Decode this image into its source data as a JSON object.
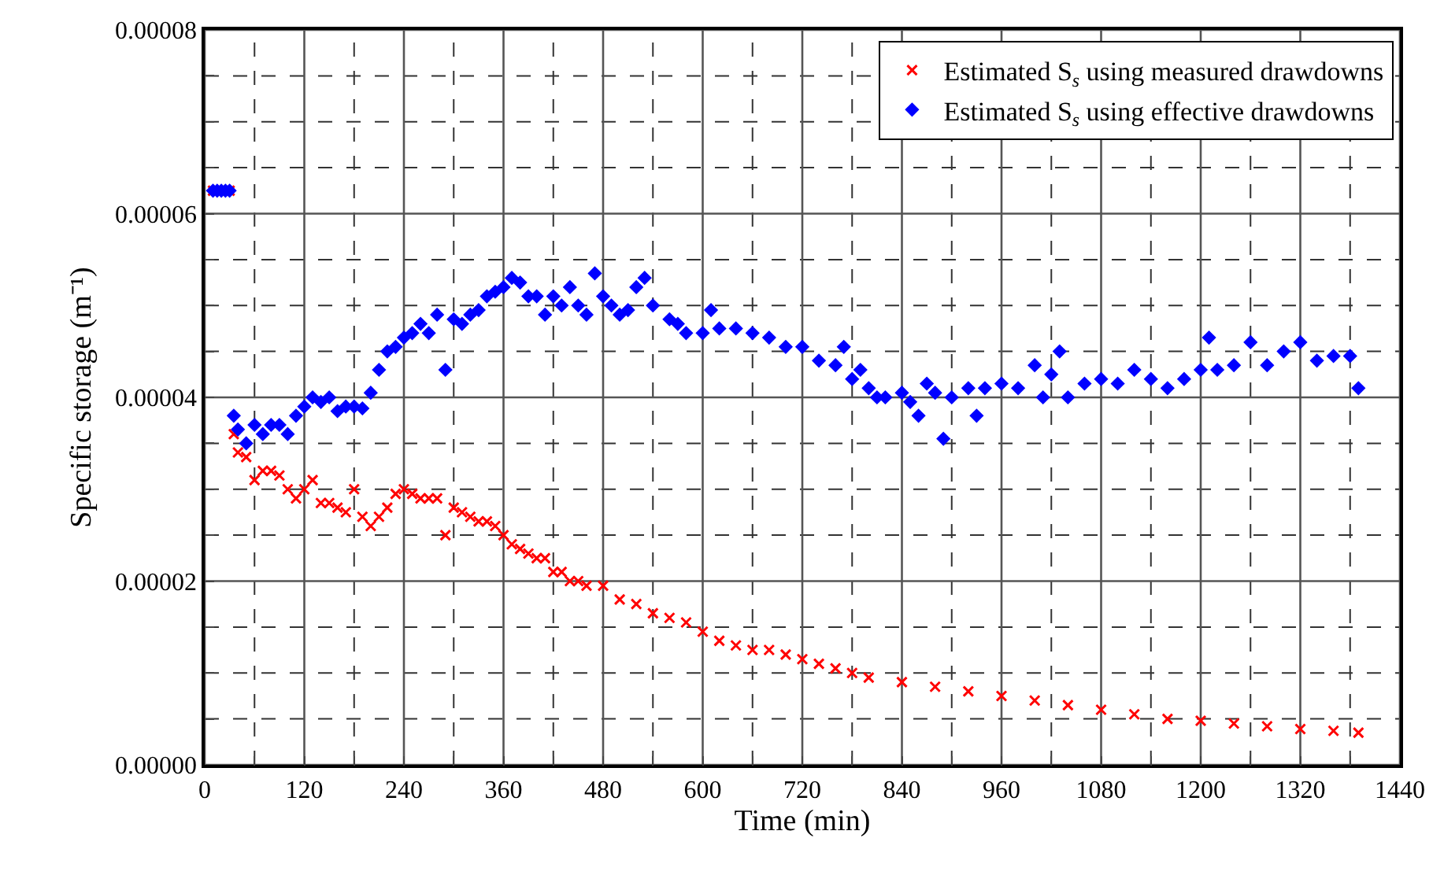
{
  "chart_data": {
    "type": "scatter",
    "xlabel": "Time (min)",
    "ylabel": "Specific storage (m⁻¹)",
    "xlim": [
      0,
      1440
    ],
    "ylim": [
      0,
      8e-05
    ],
    "xticks": [
      0,
      {
        "value": 60,
        "label": null
      },
      120,
      {
        "value": 180,
        "label": null
      },
      240,
      {
        "value": 300,
        "label": null
      },
      360,
      {
        "value": 420,
        "label": null
      },
      480,
      {
        "value": 540,
        "label": null
      },
      600,
      {
        "value": 660,
        "label": null
      },
      720,
      {
        "value": 780,
        "label": null
      },
      840,
      {
        "value": 900,
        "label": null
      },
      960,
      {
        "value": 1020,
        "label": null
      },
      1080,
      {
        "value": 1140,
        "label": null
      },
      1200,
      {
        "value": 1260,
        "label": null
      },
      1320,
      {
        "value": 1380,
        "label": null
      },
      1440
    ],
    "yticks": [
      {
        "value": 0,
        "label": "0.00000"
      },
      {
        "value": 5e-06,
        "label": null
      },
      {
        "value": 1e-05,
        "label": null
      },
      {
        "value": 1.5e-05,
        "label": null
      },
      {
        "value": 2e-05,
        "label": "0.00002"
      },
      {
        "value": 2.5e-05,
        "label": null
      },
      {
        "value": 3e-05,
        "label": null
      },
      {
        "value": 3.5e-05,
        "label": null
      },
      {
        "value": 4e-05,
        "label": "0.00004"
      },
      {
        "value": 4.5e-05,
        "label": null
      },
      {
        "value": 5e-05,
        "label": null
      },
      {
        "value": 5.5e-05,
        "label": null
      },
      {
        "value": 6e-05,
        "label": "0.00006"
      },
      {
        "value": 6.5e-05,
        "label": null
      },
      {
        "value": 7e-05,
        "label": null
      },
      {
        "value": 7.5e-05,
        "label": null
      },
      {
        "value": 8e-05,
        "label": "0.00008"
      }
    ],
    "grid": true,
    "legend": "top right",
    "series": [
      {
        "name": "Estimated S$_{s}$ using measured drawdowns",
        "color": "#ff0000",
        "marker": "cross",
        "x": [
          10,
          30,
          35,
          40,
          50,
          60,
          70,
          80,
          90,
          100,
          110,
          120,
          130,
          140,
          150,
          160,
          170,
          180,
          190,
          200,
          210,
          220,
          230,
          240,
          250,
          260,
          270,
          280,
          290,
          300,
          310,
          320,
          330,
          340,
          350,
          360,
          370,
          380,
          390,
          400,
          410,
          420,
          430,
          440,
          450,
          460,
          480,
          500,
          520,
          540,
          560,
          580,
          600,
          620,
          640,
          660,
          680,
          700,
          720,
          740,
          760,
          780,
          800,
          840,
          880,
          920,
          960,
          1000,
          1040,
          1080,
          1120,
          1160,
          1200,
          1240,
          1280,
          1320,
          1360,
          1390
        ],
        "values": [
          6.25e-05,
          6.25e-05,
          3.6e-05,
          3.4e-05,
          3.35e-05,
          3.1e-05,
          3.2e-05,
          3.2e-05,
          3.15e-05,
          3e-05,
          2.9e-05,
          3e-05,
          3.1e-05,
          2.85e-05,
          2.85e-05,
          2.8e-05,
          2.75e-05,
          3e-05,
          2.7e-05,
          2.6e-05,
          2.7e-05,
          2.8e-05,
          2.95e-05,
          3e-05,
          2.95e-05,
          2.9e-05,
          2.9e-05,
          2.9e-05,
          2.5e-05,
          2.8e-05,
          2.75e-05,
          2.7e-05,
          2.65e-05,
          2.65e-05,
          2.6e-05,
          2.5e-05,
          2.4e-05,
          2.35e-05,
          2.3e-05,
          2.25e-05,
          2.25e-05,
          2.1e-05,
          2.1e-05,
          2e-05,
          2e-05,
          1.95e-05,
          1.95e-05,
          1.8e-05,
          1.75e-05,
          1.65e-05,
          1.6e-05,
          1.55e-05,
          1.45e-05,
          1.35e-05,
          1.3e-05,
          1.25e-05,
          1.25e-05,
          1.2e-05,
          1.15e-05,
          1.1e-05,
          1.05e-05,
          1e-05,
          9.5e-06,
          9e-06,
          8.5e-06,
          8e-06,
          7.5e-06,
          7e-06,
          6.5e-06,
          6e-06,
          5.5e-06,
          5e-06,
          4.8e-06,
          4.5e-06,
          4.2e-06,
          3.9e-06,
          3.7e-06,
          3.5e-06
        ]
      },
      {
        "name": "Estimated S$_{s}$ using effective drawdowns",
        "color": "#0000ff",
        "marker": "diamond",
        "x": [
          10,
          15,
          20,
          25,
          30,
          35,
          40,
          50,
          60,
          70,
          80,
          90,
          100,
          110,
          120,
          130,
          140,
          150,
          160,
          170,
          180,
          190,
          200,
          210,
          220,
          230,
          240,
          250,
          260,
          270,
          280,
          290,
          300,
          310,
          320,
          330,
          340,
          350,
          360,
          370,
          380,
          390,
          400,
          410,
          420,
          430,
          440,
          450,
          460,
          470,
          480,
          490,
          500,
          510,
          520,
          530,
          540,
          560,
          570,
          580,
          600,
          610,
          620,
          640,
          660,
          680,
          700,
          720,
          740,
          760,
          770,
          780,
          790,
          800,
          810,
          820,
          840,
          850,
          860,
          870,
          880,
          890,
          900,
          920,
          930,
          940,
          960,
          980,
          1000,
          1010,
          1020,
          1030,
          1040,
          1060,
          1080,
          1100,
          1120,
          1140,
          1160,
          1180,
          1200,
          1210,
          1220,
          1240,
          1260,
          1280,
          1300,
          1320,
          1340,
          1360,
          1380,
          1390
        ],
        "values": [
          6.25e-05,
          6.25e-05,
          6.25e-05,
          6.25e-05,
          6.25e-05,
          3.8e-05,
          3.65e-05,
          3.5e-05,
          3.7e-05,
          3.6e-05,
          3.7e-05,
          3.7e-05,
          3.6e-05,
          3.8e-05,
          3.9e-05,
          4e-05,
          3.95e-05,
          4e-05,
          3.85e-05,
          3.9e-05,
          3.9e-05,
          3.88e-05,
          4.05e-05,
          4.3e-05,
          4.5e-05,
          4.55e-05,
          4.65e-05,
          4.7e-05,
          4.8e-05,
          4.7e-05,
          4.9e-05,
          4.3e-05,
          4.85e-05,
          4.8e-05,
          4.9e-05,
          4.95e-05,
          5.1e-05,
          5.15e-05,
          5.2e-05,
          5.3e-05,
          5.25e-05,
          5.1e-05,
          5.1e-05,
          4.9e-05,
          5.1e-05,
          5e-05,
          5.2e-05,
          5e-05,
          4.9e-05,
          5.35e-05,
          5.1e-05,
          5e-05,
          4.9e-05,
          4.95e-05,
          5.2e-05,
          5.3e-05,
          5e-05,
          4.85e-05,
          4.8e-05,
          4.7e-05,
          4.7e-05,
          4.95e-05,
          4.75e-05,
          4.75e-05,
          4.7e-05,
          4.65e-05,
          4.55e-05,
          4.55e-05,
          4.4e-05,
          4.35e-05,
          4.55e-05,
          4.2e-05,
          4.3e-05,
          4.1e-05,
          4e-05,
          4e-05,
          4.05e-05,
          3.95e-05,
          3.8e-05,
          4.15e-05,
          4.05e-05,
          3.55e-05,
          4e-05,
          4.1e-05,
          3.8e-05,
          4.1e-05,
          4.15e-05,
          4.1e-05,
          4.35e-05,
          4e-05,
          4.25e-05,
          4.5e-05,
          4e-05,
          4.15e-05,
          4.2e-05,
          4.15e-05,
          4.3e-05,
          4.2e-05,
          4.1e-05,
          4.2e-05,
          4.3e-05,
          4.65e-05,
          4.3e-05,
          4.35e-05,
          4.6e-05,
          4.35e-05,
          4.5e-05,
          4.6e-05,
          4.4e-05,
          4.45e-05,
          4.45e-05,
          4.1e-05
        ]
      }
    ]
  }
}
